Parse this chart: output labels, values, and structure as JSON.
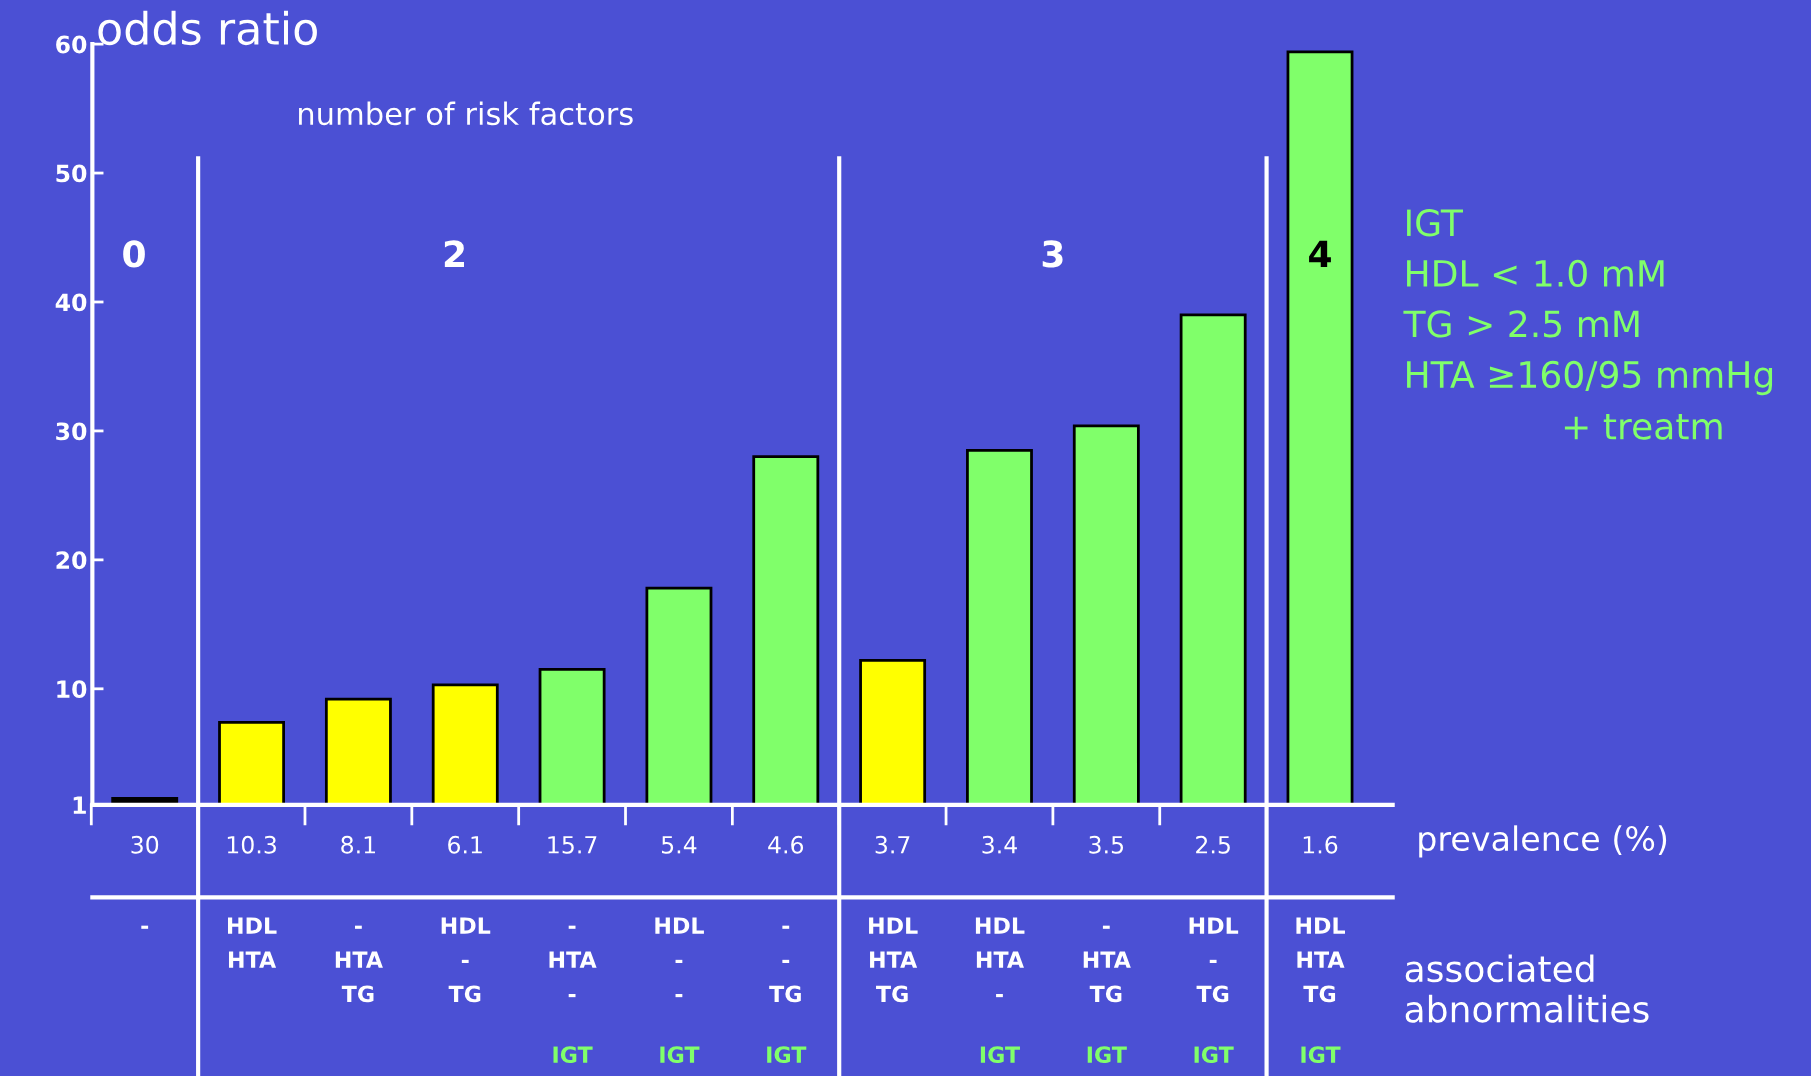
{
  "chart_data": {
    "type": "bar",
    "ylabel": "odds ratio",
    "subtitle": "number of risk factors",
    "xlabel": "prevalence (%)",
    "categories": [
      "30",
      "10.3",
      "8.1",
      "6.1",
      "15.7",
      "5.4",
      "4.6",
      "3.7",
      "3.4",
      "3.5",
      "2.5",
      "1.6"
    ],
    "values": [
      1.5,
      7.4,
      9.2,
      10.3,
      11.5,
      17.8,
      28.0,
      12.2,
      28.5,
      30.4,
      39.0,
      59.4
    ],
    "colors": [
      "#000000",
      "#ffff00",
      "#ffff00",
      "#ffff00",
      "#80ff6a",
      "#80ff6a",
      "#80ff6a",
      "#ffff00",
      "#80ff6a",
      "#80ff6a",
      "#80ff6a",
      "#80ff6a"
    ],
    "ylim": [
      1,
      60
    ],
    "yticks": [
      1,
      10,
      20,
      30,
      40,
      50,
      60
    ],
    "grid": false,
    "annotations": [
      "0",
      "2",
      "3",
      "4",
      "IGT",
      "HDL < 1.0 mM",
      "TG > 2.5 mM",
      "HTA ≥160/95 mmHg",
      "+ treatm",
      "associated abnormalities",
      "-",
      "HDL\nHTA",
      "-\nHTA\nTG",
      "HDL\n-\nTG",
      "-\nHTA\n-",
      "HDL\n-\n-",
      "-\n-\nTG",
      "HDL\nHTA\nTG",
      "HDL\nHTA\n-",
      "-\nHTA\nTG",
      "HDL\n-\nTG",
      "HDL\nHTA\nTG",
      "IGT",
      "IGT",
      "IGT",
      "IGT",
      "IGT",
      "IGT",
      "IGT"
    ]
  }
}
